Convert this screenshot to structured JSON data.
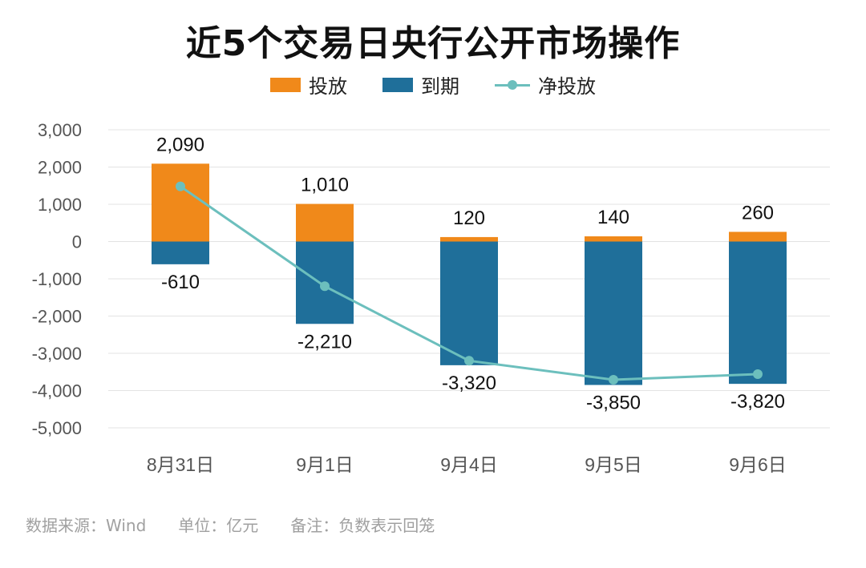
{
  "title": "近5个交易日央行公开市场操作",
  "legend": [
    {
      "label": "投放",
      "color": "#f0891a",
      "kind": "bar"
    },
    {
      "label": "到期",
      "color": "#1f6f9a",
      "kind": "bar"
    },
    {
      "label": "净投放",
      "color": "#6cbfbd",
      "kind": "line"
    }
  ],
  "footer": {
    "source": "数据来源：Wind",
    "unit": "单位：亿元",
    "note": "备注：负数表示回笼"
  },
  "chart_data": {
    "type": "bar",
    "categories": [
      "8月31日",
      "9月1日",
      "9月4日",
      "9月5日",
      "9月6日"
    ],
    "series": [
      {
        "name": "投放",
        "type": "bar",
        "color": "#f0891a",
        "values": [
          2090,
          1010,
          120,
          140,
          260
        ]
      },
      {
        "name": "到期",
        "type": "bar",
        "color": "#1f6f9a",
        "values": [
          -610,
          -2210,
          -3320,
          -3850,
          -3820
        ]
      },
      {
        "name": "净投放",
        "type": "line",
        "color": "#6cbfbd",
        "values": [
          1480,
          -1200,
          -3200,
          -3710,
          -3560
        ]
      }
    ],
    "data_labels": {
      "投放": [
        "2,090",
        "1,010",
        "120",
        "140",
        "260"
      ],
      "到期": [
        "-610",
        "-2,210",
        "-3,320",
        "-3,850",
        "-3,820"
      ]
    },
    "y_ticks": [
      "3,000",
      "2,000",
      "1,000",
      "0",
      "-1,000",
      "-2,000",
      "-3,000",
      "-4,000",
      "-5,000"
    ],
    "y_tick_values": [
      3000,
      2000,
      1000,
      0,
      -1000,
      -2000,
      -3000,
      -4000,
      -5000
    ],
    "ylim": [
      -5000,
      3000
    ],
    "grid": true,
    "legend_position": "top"
  }
}
